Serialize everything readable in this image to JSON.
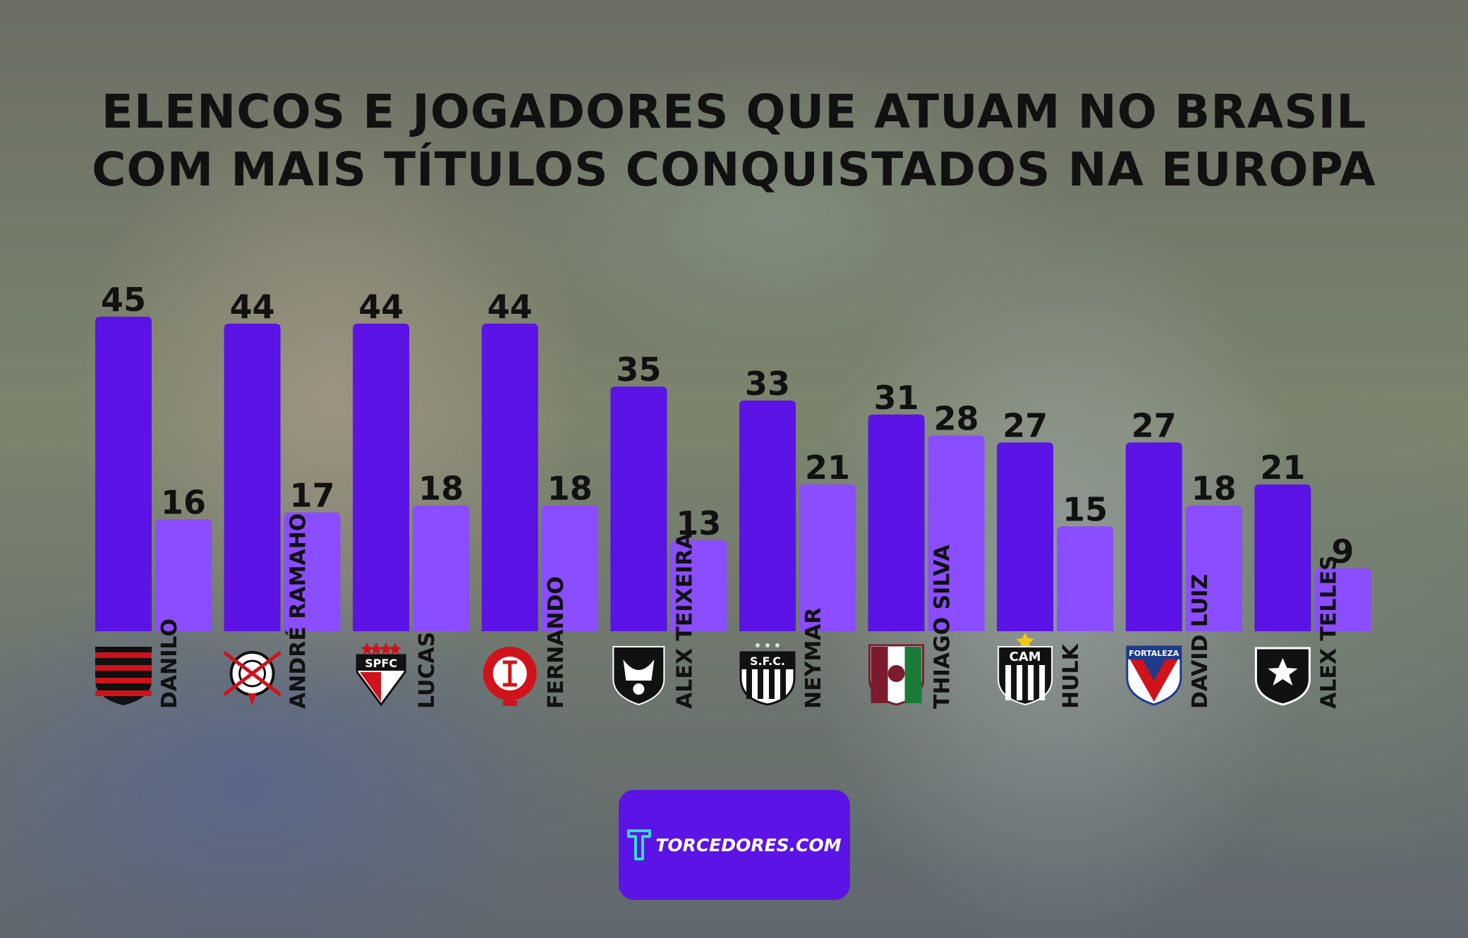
{
  "title_lines": [
    "ELENCOS E JOGADORES QUE ATUAM NO BRASIL",
    "COM MAIS TÍTULOS CONQUISTADOS NA EUROPA"
  ],
  "logo": {
    "text": "TORCEDORES.COM",
    "icon": "torcedores-t-icon"
  },
  "colors": {
    "team_bar": "#5b13e6",
    "player_bar": "#8a4dff",
    "logo_bg": "#5b13e6"
  },
  "chart_data": {
    "type": "bar",
    "ylim": [
      0,
      45
    ],
    "series": [
      {
        "values": [
          45,
          44,
          44,
          44,
          35,
          33,
          31,
          27,
          27,
          21
        ]
      },
      {
        "values": [
          16,
          17,
          18,
          18,
          13,
          21,
          28,
          15,
          18,
          9
        ]
      }
    ],
    "groups": [
      {
        "team_icon": "flamengo-crest-icon",
        "team_value": 45,
        "player": "DANILO",
        "player_value": 16
      },
      {
        "team_icon": "corinthians-crest-icon",
        "team_value": 44,
        "player": "ANDRÉ RAMAHO",
        "player_value": 17
      },
      {
        "team_icon": "sao-paulo-crest-icon",
        "team_crest_text": "SPFC",
        "team_value": 44,
        "player": "LUCAS",
        "player_value": 18
      },
      {
        "team_icon": "internacional-crest-icon",
        "team_value": 44,
        "player": "FERNANDO",
        "player_value": 18
      },
      {
        "team_icon": "vasco-crest-icon",
        "team_value": 35,
        "player": "ALEX TEIXEIRA",
        "player_value": 13
      },
      {
        "team_icon": "santos-crest-icon",
        "team_crest_text": "S.F.C.",
        "team_value": 33,
        "player": "NEYMAR",
        "player_value": 21
      },
      {
        "team_icon": "fluminense-crest-icon",
        "team_value": 31,
        "player": "THIAGO SILVA",
        "player_value": 28
      },
      {
        "team_icon": "atletico-mineiro-crest-icon",
        "team_crest_text": "CAM",
        "team_value": 27,
        "player": "HULK",
        "player_value": 15
      },
      {
        "team_icon": "fortaleza-crest-icon",
        "team_crest_text": "FORTALEZA",
        "team_value": 27,
        "player": "DAVID LUIZ",
        "player_value": 18
      },
      {
        "team_icon": "botafogo-crest-icon",
        "team_value": 21,
        "player": "ALEX TELLES",
        "player_value": 9
      }
    ]
  }
}
